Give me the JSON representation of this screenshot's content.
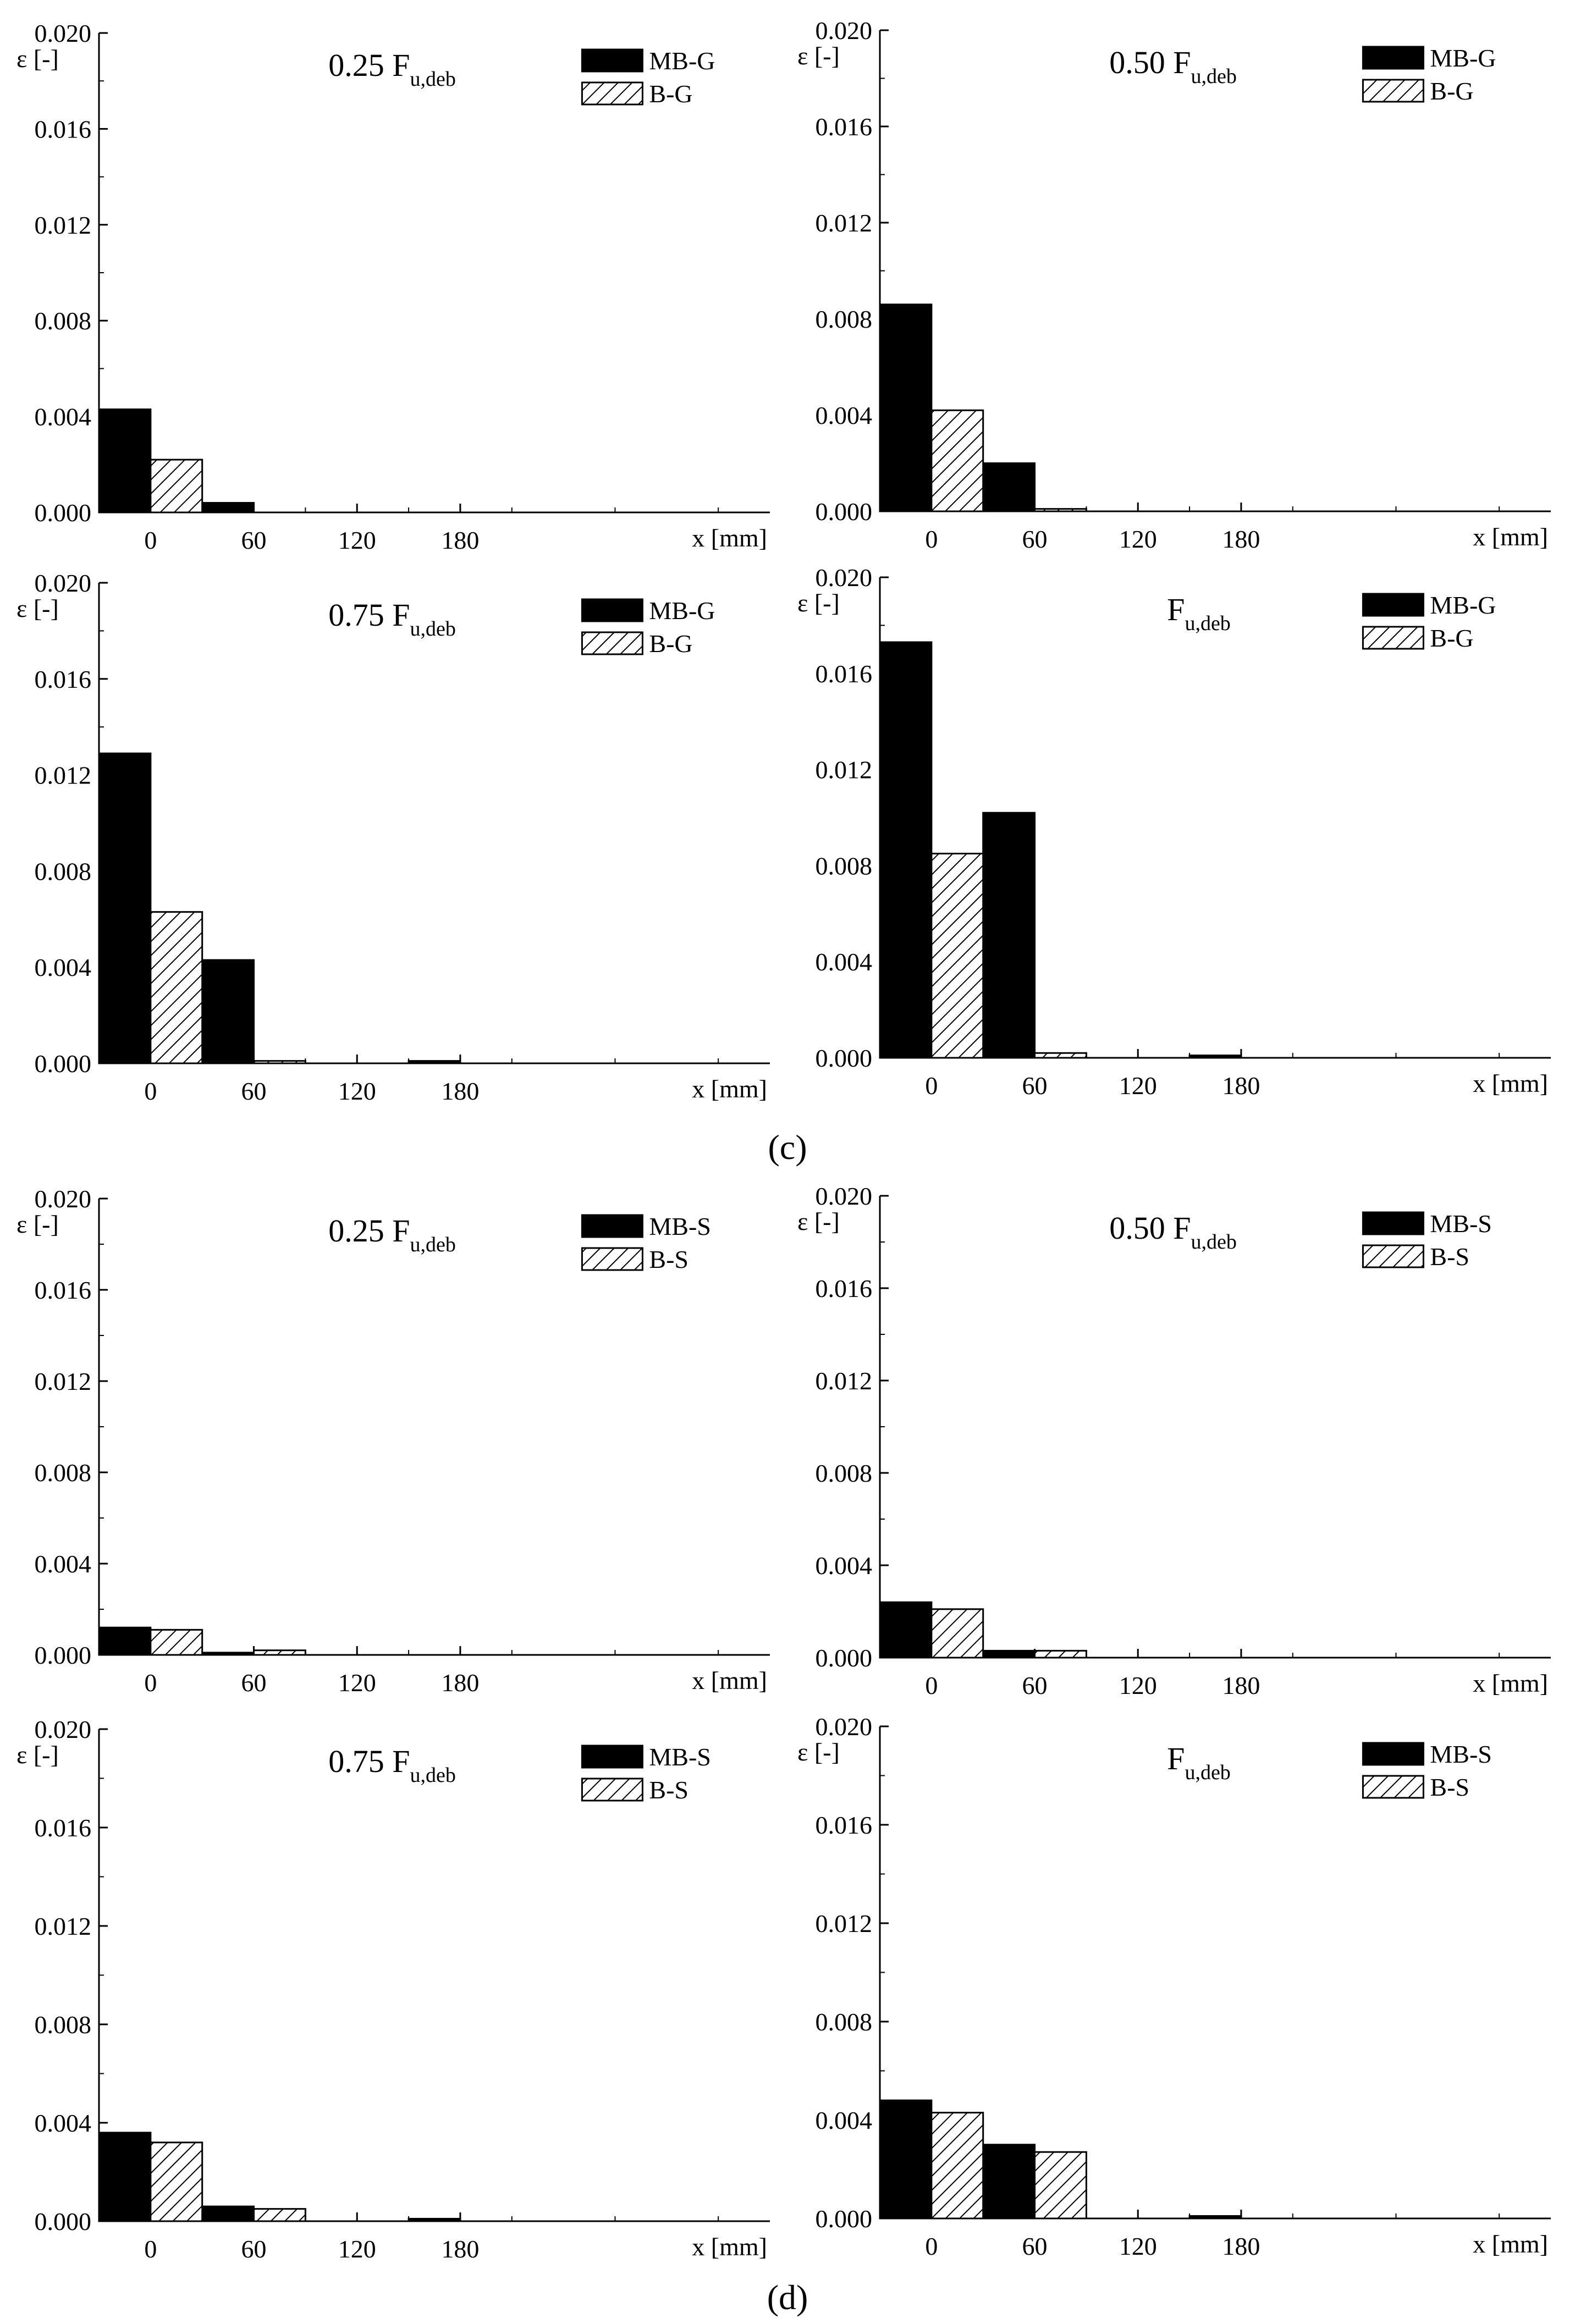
{
  "figure": {
    "panel_c_label": "(c)",
    "panel_d_label": "(d)"
  },
  "styles": {
    "mb_color": "#000000",
    "b_fill": "hatch"
  },
  "chart_data": [
    {
      "type": "bar",
      "group": "c",
      "title_main": "0.25 F",
      "title_sub": "u,deb",
      "ylabel": "ε [-]",
      "xlabel": "x [mm]",
      "ylim": [
        0,
        0.02
      ],
      "yticks": [
        "0.000",
        "0.004",
        "0.008",
        "0.012",
        "0.016",
        "0.020"
      ],
      "categories": [
        "0",
        "60",
        "120",
        "180"
      ],
      "series": [
        {
          "name": "MB-G",
          "style": "solid",
          "values": [
            0.0043,
            0.0004,
            0.0,
            0.0
          ]
        },
        {
          "name": "B-G",
          "style": "hatch",
          "values": [
            0.0022,
            0.0,
            0.0,
            0.0
          ]
        }
      ]
    },
    {
      "type": "bar",
      "group": "c",
      "title_main": "0.50 F",
      "title_sub": "u,deb",
      "ylabel": "ε [-]",
      "xlabel": "x [mm]",
      "ylim": [
        0,
        0.02
      ],
      "yticks": [
        "0.000",
        "0.004",
        "0.008",
        "0.012",
        "0.016",
        "0.020"
      ],
      "categories": [
        "0",
        "60",
        "120",
        "180"
      ],
      "series": [
        {
          "name": "MB-G",
          "style": "solid",
          "values": [
            0.0086,
            0.002,
            0.0,
            0.0
          ]
        },
        {
          "name": "B-G",
          "style": "hatch",
          "values": [
            0.0042,
            0.0001,
            0.0,
            0.0
          ]
        }
      ]
    },
    {
      "type": "bar",
      "group": "c",
      "title_main": "0.75 F",
      "title_sub": "u,deb",
      "ylabel": "ε [-]",
      "xlabel": "x [mm]",
      "ylim": [
        0,
        0.02
      ],
      "yticks": [
        "0.000",
        "0.004",
        "0.008",
        "0.012",
        "0.016",
        "0.020"
      ],
      "categories": [
        "0",
        "60",
        "120",
        "180"
      ],
      "series": [
        {
          "name": "MB-G",
          "style": "solid",
          "values": [
            0.0129,
            0.0043,
            0.0,
            0.0001
          ]
        },
        {
          "name": "B-G",
          "style": "hatch",
          "values": [
            0.0063,
            0.0001,
            0.0,
            0.0
          ]
        }
      ]
    },
    {
      "type": "bar",
      "group": "c",
      "title_main": "F",
      "title_sub": "u,deb",
      "ylabel": "ε [-]",
      "xlabel": "x [mm]",
      "ylim": [
        0,
        0.02
      ],
      "yticks": [
        "0.000",
        "0.004",
        "0.008",
        "0.012",
        "0.016",
        "0.020"
      ],
      "categories": [
        "0",
        "60",
        "120",
        "180"
      ],
      "series": [
        {
          "name": "MB-G",
          "style": "solid",
          "values": [
            0.0173,
            0.0102,
            0.0,
            0.0001
          ]
        },
        {
          "name": "B-G",
          "style": "hatch",
          "values": [
            0.0085,
            0.0002,
            0.0,
            0.0
          ]
        }
      ]
    },
    {
      "type": "bar",
      "group": "d",
      "title_main": "0.25 F",
      "title_sub": "u,deb",
      "ylabel": "ε [-]",
      "xlabel": "x [mm]",
      "ylim": [
        0,
        0.02
      ],
      "yticks": [
        "0.000",
        "0.004",
        "0.008",
        "0.012",
        "0.016",
        "0.020"
      ],
      "categories": [
        "0",
        "60",
        "120",
        "180"
      ],
      "series": [
        {
          "name": "MB-S",
          "style": "solid",
          "values": [
            0.0012,
            0.0001,
            0.0,
            0.0
          ]
        },
        {
          "name": "B-S",
          "style": "hatch",
          "values": [
            0.0011,
            0.0002,
            0.0,
            0.0
          ]
        }
      ]
    },
    {
      "type": "bar",
      "group": "d",
      "title_main": "0.50 F",
      "title_sub": "u,deb",
      "ylabel": "ε [-]",
      "xlabel": "x [mm]",
      "ylim": [
        0,
        0.02
      ],
      "yticks": [
        "0.000",
        "0.004",
        "0.008",
        "0.012",
        "0.016",
        "0.020"
      ],
      "categories": [
        "0",
        "60",
        "120",
        "180"
      ],
      "series": [
        {
          "name": "MB-S",
          "style": "solid",
          "values": [
            0.0024,
            0.0003,
            0.0,
            0.0
          ]
        },
        {
          "name": "B-S",
          "style": "hatch",
          "values": [
            0.0021,
            0.0003,
            0.0,
            0.0
          ]
        }
      ]
    },
    {
      "type": "bar",
      "group": "d",
      "title_main": "0.75 F",
      "title_sub": "u,deb",
      "ylabel": "ε [-]",
      "xlabel": "x [mm]",
      "ylim": [
        0,
        0.02
      ],
      "yticks": [
        "0.000",
        "0.004",
        "0.008",
        "0.012",
        "0.016",
        "0.020"
      ],
      "categories": [
        "0",
        "60",
        "120",
        "180"
      ],
      "series": [
        {
          "name": "MB-S",
          "style": "solid",
          "values": [
            0.0036,
            0.0006,
            0.0,
            0.0001
          ]
        },
        {
          "name": "B-S",
          "style": "hatch",
          "values": [
            0.0032,
            0.0005,
            0.0,
            0.0
          ]
        }
      ]
    },
    {
      "type": "bar",
      "group": "d",
      "title_main": "F",
      "title_sub": "u,deb",
      "ylabel": "ε [-]",
      "xlabel": "x [mm]",
      "ylim": [
        0,
        0.02
      ],
      "yticks": [
        "0.000",
        "0.004",
        "0.008",
        "0.012",
        "0.016",
        "0.020"
      ],
      "categories": [
        "0",
        "60",
        "120",
        "180"
      ],
      "series": [
        {
          "name": "MB-S",
          "style": "solid",
          "values": [
            0.0048,
            0.003,
            0.0,
            0.0001
          ]
        },
        {
          "name": "B-S",
          "style": "hatch",
          "values": [
            0.0043,
            0.0027,
            0.0,
            0.0
          ]
        }
      ]
    }
  ]
}
